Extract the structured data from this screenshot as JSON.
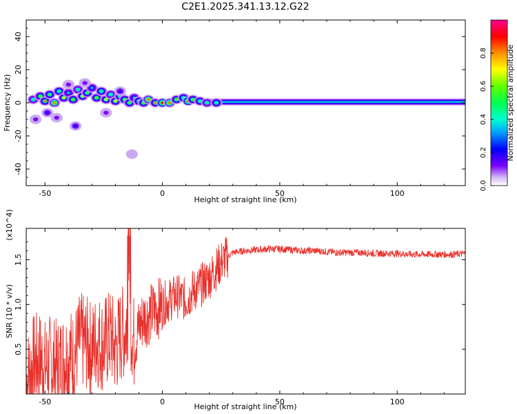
{
  "figure_title": "C2E1.2025.341.13.12.G22",
  "chart_data": [
    {
      "type": "heatmap",
      "title": "C2E1.2025.341.13.12.G22",
      "xlabel": "Height of straight line (km)",
      "ylabel": "Frequency (Hz)",
      "xlim": [
        -58,
        129
      ],
      "ylim": [
        -50,
        50
      ],
      "x_ticks": [
        -50,
        0,
        50,
        100
      ],
      "y_ticks": [
        -40,
        -20,
        0,
        20,
        40
      ],
      "x_tick_labels": [
        "-50",
        "0",
        "50",
        "100"
      ],
      "y_tick_labels": [
        "-40",
        "-20",
        "0",
        "20",
        "40"
      ],
      "colorbar": {
        "label": "Normalized spectral amplitude",
        "range": [
          0.0,
          1.0
        ],
        "ticks": [
          0.0,
          0.2,
          0.4,
          0.6,
          0.8
        ],
        "tick_labels": [
          "0.0",
          "0.2",
          "0.4",
          "0.6",
          "0.8"
        ],
        "colormap": [
          "#ffffff",
          "#c8a8f0",
          "#7a00ff",
          "#0000ff",
          "#00e0ff",
          "#00ff80",
          "#40ff00",
          "#ffff00",
          "#ff8000",
          "#ff0000",
          "#ff0090"
        ]
      },
      "band": {
        "x_start": 20,
        "x_end": 129,
        "center_hz": 0.5,
        "half_width_hz": 2.5
      },
      "scatter_blobs": [
        [
          -55,
          2,
          0.55
        ],
        [
          -52,
          4,
          0.7
        ],
        [
          -50,
          1,
          0.85
        ],
        [
          -48,
          5,
          0.65
        ],
        [
          -46,
          0,
          0.9
        ],
        [
          -44,
          7,
          0.6
        ],
        [
          -42,
          3,
          0.75
        ],
        [
          -40,
          6,
          0.5
        ],
        [
          -38,
          2,
          0.7
        ],
        [
          -36,
          8,
          0.55
        ],
        [
          -34,
          4,
          0.8
        ],
        [
          -32,
          6,
          0.65
        ],
        [
          -30,
          9,
          0.45
        ],
        [
          -28,
          3,
          0.7
        ],
        [
          -26,
          7,
          0.6
        ],
        [
          -24,
          2,
          0.75
        ],
        [
          -22,
          5,
          0.55
        ],
        [
          -20,
          1,
          0.8
        ],
        [
          -18,
          4,
          0.6
        ],
        [
          -16,
          2,
          0.7
        ],
        [
          -14,
          0,
          0.65
        ],
        [
          -12,
          3,
          0.5
        ],
        [
          -10,
          1,
          0.6
        ],
        [
          -8,
          0,
          0.7
        ],
        [
          -6,
          2,
          0.9
        ],
        [
          -3,
          0,
          0.85
        ],
        [
          0,
          0,
          0.95
        ],
        [
          3,
          0,
          0.9
        ],
        [
          6,
          2,
          0.7
        ],
        [
          9,
          3,
          0.6
        ],
        [
          11,
          1,
          0.95
        ],
        [
          13,
          2,
          0.7
        ],
        [
          16,
          1,
          0.6
        ],
        [
          19,
          0,
          0.55
        ],
        [
          23,
          0,
          0.6
        ],
        [
          -49,
          -6,
          0.3
        ],
        [
          -45,
          -9,
          0.25
        ],
        [
          -37,
          -14,
          0.35
        ],
        [
          -24,
          -6,
          0.25
        ],
        [
          -40,
          11,
          0.25
        ],
        [
          -33,
          12,
          0.2
        ],
        [
          -13,
          -31,
          0.1
        ],
        [
          -18,
          7,
          0.3
        ],
        [
          -54,
          -10,
          0.25
        ]
      ]
    },
    {
      "type": "line",
      "xlabel": "Height of straight line (km)",
      "ylabel": "SNR (10 * v/v)",
      "y_scale_label": "(x10^4)",
      "xlim": [
        -58,
        129
      ],
      "ylim": [
        0.0,
        1.85
      ],
      "x_ticks": [
        -50,
        0,
        50,
        100
      ],
      "y_ticks": [
        0.5,
        1.0,
        1.5
      ],
      "x_tick_labels": [
        "-50",
        "0",
        "50",
        "100"
      ],
      "y_tick_labels": [
        "0.5",
        "1.0",
        "1.5"
      ],
      "series": [
        {
          "name": "SNR",
          "color": "#e8302b",
          "x": [
            -58,
            -55,
            -52,
            -50,
            -48,
            -45,
            -42,
            -40,
            -38,
            -35,
            -32,
            -30,
            -28,
            -25,
            -22,
            -20,
            -18,
            -16,
            -14,
            -12,
            -10,
            -8,
            -5,
            -2,
            0,
            3,
            6,
            10,
            13,
            16,
            20,
            23,
            26,
            30,
            35,
            40,
            45,
            50,
            55,
            60,
            65,
            70,
            75,
            80,
            85,
            90,
            95,
            100,
            105,
            110,
            115,
            120,
            125,
            129
          ],
          "values": [
            0.15,
            0.35,
            0.4,
            0.3,
            0.35,
            0.3,
            0.4,
            0.45,
            0.4,
            0.6,
            0.55,
            0.5,
            0.6,
            0.55,
            0.65,
            0.5,
            0.65,
            0.7,
            0.9,
            0.55,
            0.75,
            0.85,
            0.9,
            0.95,
            1.0,
            1.05,
            1.1,
            1.05,
            1.15,
            1.2,
            1.3,
            1.4,
            1.5,
            1.58,
            1.6,
            1.61,
            1.62,
            1.62,
            1.61,
            1.6,
            1.6,
            1.59,
            1.58,
            1.58,
            1.58,
            1.57,
            1.57,
            1.57,
            1.56,
            1.56,
            1.56,
            1.56,
            1.56,
            1.57
          ]
        }
      ]
    }
  ]
}
